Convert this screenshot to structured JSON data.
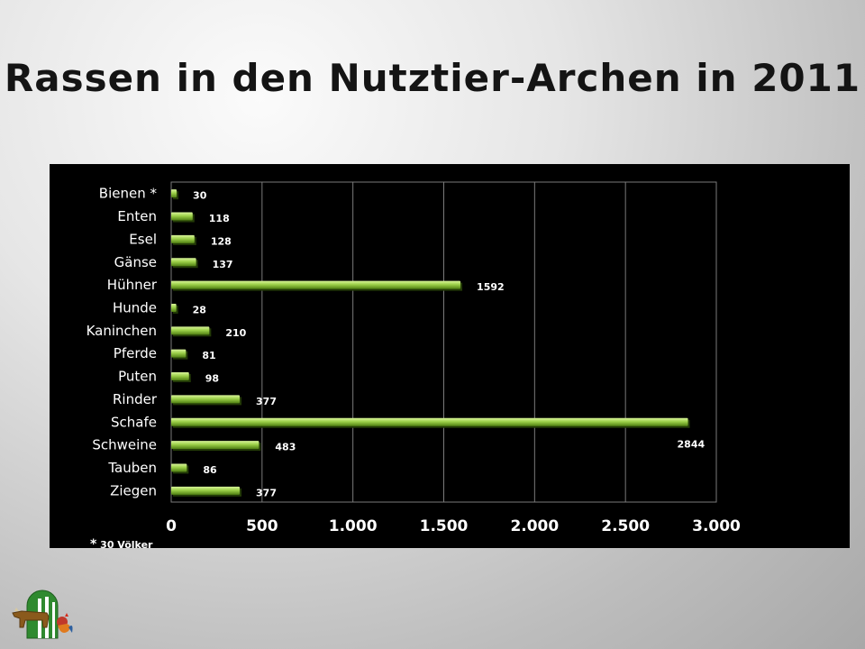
{
  "slide": {
    "title": "Rassen in den Nutztier-Archen in 2011",
    "footnote_star": "*",
    "footnote": "30 Völker"
  },
  "colors": {
    "bar_light": "#d9f59a",
    "bar_mid": "#9cd049",
    "bar_dark": "#4f7f12",
    "panel": "#000000",
    "grid": "#7a7a7a",
    "text": "#ffffff"
  },
  "icons": {
    "logo": "farm-animals-logo-icon"
  },
  "chart_data": {
    "type": "bar",
    "orientation": "horizontal",
    "title": "",
    "xlabel": "",
    "ylabel": "",
    "categories": [
      "Bienen *",
      "Enten",
      "Esel",
      "Gänse",
      "Hühner",
      "Hunde",
      "Kaninchen",
      "Pferde",
      "Puten",
      "Rinder",
      "Schafe",
      "Schweine",
      "Tauben",
      "Ziegen"
    ],
    "values": [
      30,
      118,
      128,
      137,
      1592,
      28,
      210,
      81,
      98,
      377,
      2844,
      483,
      86,
      377
    ],
    "data_labels": [
      "30",
      "118",
      "128",
      "137",
      "1592",
      "28",
      "210",
      "81",
      "98",
      "377",
      "2844",
      "483",
      "86",
      "377"
    ],
    "xlim": [
      0,
      3000
    ],
    "xticks": [
      0,
      500,
      1000,
      1500,
      2000,
      2500,
      3000
    ],
    "xtick_labels": [
      "0",
      "500",
      "1.000",
      "1.500",
      "2.000",
      "2.500",
      "3.000"
    ],
    "grid": true,
    "legend": "none"
  }
}
